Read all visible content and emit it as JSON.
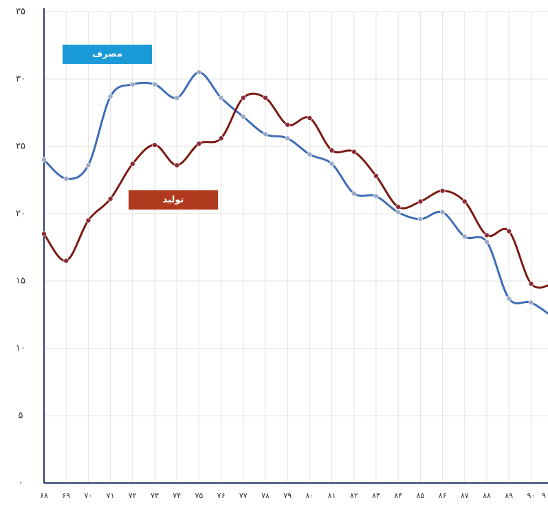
{
  "chart_data": {
    "type": "line",
    "categories": [
      "۶۸",
      "۶۹",
      "۷۰",
      "۷۱",
      "۷۲",
      "۷۳",
      "۷۴",
      "۷۵",
      "۷۶",
      "۷۷",
      "۷۸",
      "۷۹",
      "۸۰",
      "۸۱",
      "۸۲",
      "۸۳",
      "۸۴",
      "۸۵",
      "۸۶",
      "۸۷",
      "۸۸",
      "۸۹",
      "۹۰",
      "۹"
    ],
    "series": [
      {
        "name": "مصرف",
        "color": "#3d6cb5",
        "values": [
          24.0,
          22.6,
          23.6,
          28.7,
          29.6,
          29.6,
          28.6,
          30.5,
          28.6,
          27.2,
          25.9,
          25.6,
          24.4,
          23.7,
          21.5,
          21.3,
          20.1,
          19.6,
          20.1,
          18.3,
          17.9,
          13.7,
          13.4,
          12.3
        ]
      },
      {
        "name": "تولید",
        "color": "#7a1a12",
        "values": [
          18.5,
          16.5,
          19.5,
          21.1,
          23.7,
          25.1,
          23.6,
          25.2,
          25.6,
          28.6,
          28.6,
          26.6,
          27.1,
          24.7,
          24.6,
          22.8,
          20.5,
          20.9,
          21.7,
          20.9,
          18.4,
          18.7,
          14.8,
          14.8
        ]
      }
    ],
    "legend_colors": [
      "#1a9ad6",
      "#b03a1e"
    ],
    "ylim": [
      0,
      35
    ],
    "yticks": [
      {
        "value": 0,
        "label": "۰"
      },
      {
        "value": 5,
        "label": "۵"
      },
      {
        "value": 10,
        "label": "۱۰"
      },
      {
        "value": 15,
        "label": "۱۵"
      },
      {
        "value": 20,
        "label": "۲۰"
      },
      {
        "value": 25,
        "label": "۲۵"
      },
      {
        "value": 30,
        "label": "۳۰"
      },
      {
        "value": 35,
        "label": "۳۵"
      }
    ],
    "grid": true
  }
}
